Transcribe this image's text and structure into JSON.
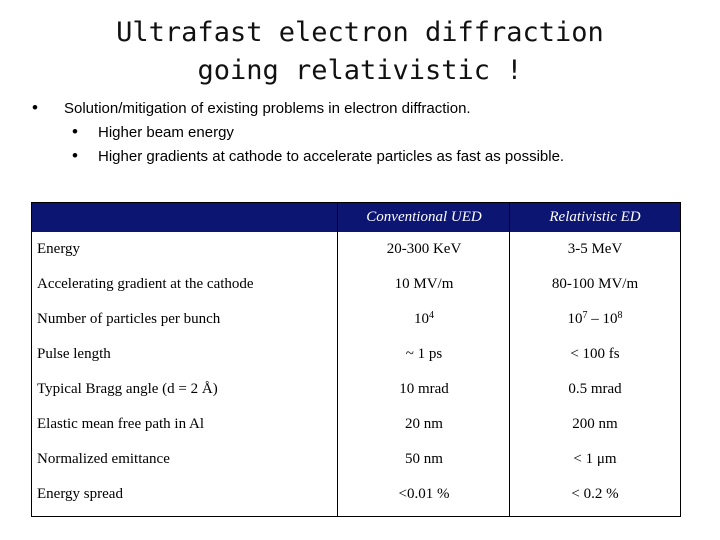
{
  "title": {
    "line1": "Ultrafast electron diffraction",
    "line2": "going relativistic !"
  },
  "bullets": {
    "main": "Solution/mitigation of existing problems in electron diffraction.",
    "sub": [
      "Higher beam energy",
      "Higher gradients at cathode to accelerate particles as fast as possible."
    ]
  },
  "table": {
    "header": {
      "col2": "Conventional UED",
      "col3": "Relativistic ED"
    },
    "rows": [
      {
        "label": "Energy",
        "conv": "20-300 KeV",
        "rel": "3-5 MeV"
      },
      {
        "label": "Accelerating gradient at the cathode",
        "conv": "10 MV/m",
        "rel": "80-100 MV/m"
      },
      {
        "label": "Number of particles per bunch",
        "conv_base": "10",
        "conv_exp": "4",
        "rel_base1": "10",
        "rel_exp1": "7",
        "rel_mid": " – ",
        "rel_base2": "10",
        "rel_exp2": "8"
      },
      {
        "label": "Pulse length",
        "conv": "~ 1 ps",
        "rel": "< 100 fs"
      },
      {
        "label": "Typical Bragg angle (d = 2 Å)",
        "conv": "10 mrad",
        "rel": "0.5 mrad"
      },
      {
        "label": "Elastic mean free path in Al",
        "conv": "20 nm",
        "rel": "200 nm"
      },
      {
        "label": "Normalized emittance",
        "conv": "50 nm",
        "rel": "< 1 μm"
      },
      {
        "label": "Energy spread",
        "conv": "<0.01 %",
        "rel": "< 0.2 %"
      }
    ]
  },
  "colors": {
    "header_bg": "#0c1672",
    "header_text": "#ffffff"
  },
  "icons": {
    "bullet": "bullet-dot-icon"
  }
}
